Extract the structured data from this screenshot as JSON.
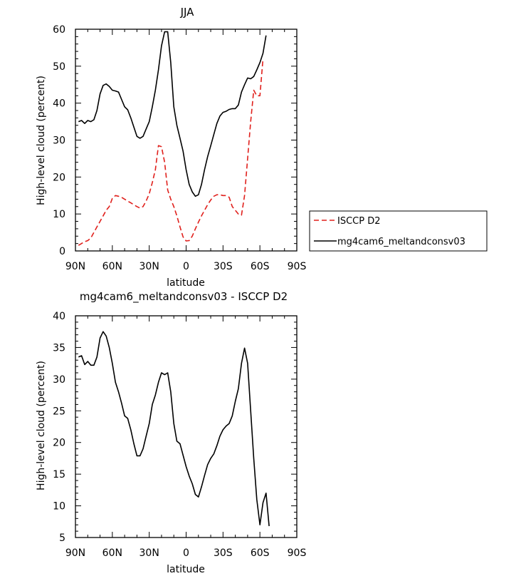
{
  "chart_data": [
    {
      "type": "line",
      "title": "JJA",
      "xlabel": "latitude",
      "ylabel": "High-level cloud (percent)",
      "xlim": [
        -90,
        90
      ],
      "ylim": [
        0,
        60
      ],
      "xticks": [
        {
          "value": -90,
          "label": "90N"
        },
        {
          "value": -60,
          "label": "60N"
        },
        {
          "value": -30,
          "label": "30N"
        },
        {
          "value": 0,
          "label": "0"
        },
        {
          "value": 30,
          "label": "30S"
        },
        {
          "value": 60,
          "label": "60S"
        },
        {
          "value": 90,
          "label": "90S"
        }
      ],
      "yticks": [
        0,
        10,
        20,
        30,
        40,
        50,
        60
      ],
      "legend": {
        "placement": "right"
      },
      "series": [
        {
          "name": "ISCCP D2",
          "color": "#e0201c",
          "dash": true,
          "points": [
            [
              -87.5,
              1.5
            ],
            [
              -85,
              2
            ],
            [
              -82.5,
              2.5
            ],
            [
              -80,
              2.8
            ],
            [
              -77.5,
              3.5
            ],
            [
              -75,
              5
            ],
            [
              -72.5,
              6.5
            ],
            [
              -70,
              8
            ],
            [
              -67.5,
              9.5
            ],
            [
              -65,
              11
            ],
            [
              -62.5,
              12
            ],
            [
              -60,
              14.2
            ],
            [
              -57.5,
              15
            ],
            [
              -55,
              14.8
            ],
            [
              -52.5,
              14.5
            ],
            [
              -50,
              14
            ],
            [
              -47.5,
              13.5
            ],
            [
              -45,
              13
            ],
            [
              -42.5,
              12.5
            ],
            [
              -40,
              12
            ],
            [
              -37.5,
              11.6
            ],
            [
              -35,
              12
            ],
            [
              -32.5,
              13.5
            ],
            [
              -30,
              15.5
            ],
            [
              -27.5,
              18.5
            ],
            [
              -25,
              22
            ],
            [
              -22.5,
              28.5
            ],
            [
              -20,
              28.2
            ],
            [
              -17.5,
              24
            ],
            [
              -15,
              16.5
            ],
            [
              -12.5,
              14
            ],
            [
              -10,
              12
            ],
            [
              -7.5,
              9.5
            ],
            [
              -5,
              6.5
            ],
            [
              -2.5,
              3.8
            ],
            [
              0,
              2.7
            ],
            [
              2.5,
              2.8
            ],
            [
              5,
              4
            ],
            [
              7.5,
              6
            ],
            [
              10,
              7.8
            ],
            [
              12.5,
              9.5
            ],
            [
              15,
              11
            ],
            [
              17.5,
              12.5
            ],
            [
              20,
              13.8
            ],
            [
              22.5,
              14.8
            ],
            [
              25,
              15.2
            ],
            [
              27.5,
              15.2
            ],
            [
              30,
              15
            ],
            [
              32.5,
              15
            ],
            [
              35,
              14.5
            ],
            [
              37.5,
              12
            ],
            [
              40,
              11
            ],
            [
              42.5,
              10
            ],
            [
              45,
              9.7
            ],
            [
              47.5,
              15
            ],
            [
              50,
              25
            ],
            [
              52.5,
              35
            ],
            [
              55,
              43.5
            ],
            [
              57.5,
              42
            ],
            [
              60,
              42
            ],
            [
              62.5,
              52
            ]
          ]
        },
        {
          "name": "mg4cam6_meltandconsv03",
          "color": "#000000",
          "dash": false,
          "points": [
            [
              -87.5,
              35
            ],
            [
              -85,
              35.3
            ],
            [
              -82.5,
              34.5
            ],
            [
              -80,
              35.3
            ],
            [
              -77.5,
              35
            ],
            [
              -75,
              35.5
            ],
            [
              -72.5,
              38
            ],
            [
              -70,
              42.5
            ],
            [
              -67.5,
              44.8
            ],
            [
              -65,
              45.2
            ],
            [
              -62.5,
              44.5
            ],
            [
              -60,
              43.5
            ],
            [
              -57.5,
              43.3
            ],
            [
              -55,
              43
            ],
            [
              -52.5,
              41
            ],
            [
              -50,
              39
            ],
            [
              -47.5,
              38.2
            ],
            [
              -45,
              36
            ],
            [
              -42.5,
              33.5
            ],
            [
              -40,
              31
            ],
            [
              -37.5,
              30.5
            ],
            [
              -35,
              31
            ],
            [
              -32.5,
              33
            ],
            [
              -30,
              35
            ],
            [
              -27.5,
              39
            ],
            [
              -25,
              43.5
            ],
            [
              -22.5,
              49
            ],
            [
              -20,
              55.5
            ],
            [
              -17.5,
              59.3
            ],
            [
              -15,
              59.3
            ],
            [
              -12.5,
              51
            ],
            [
              -10,
              39
            ],
            [
              -7.5,
              34
            ],
            [
              -5,
              30.5
            ],
            [
              -2.5,
              27
            ],
            [
              0,
              22
            ],
            [
              2.5,
              18
            ],
            [
              5,
              16
            ],
            [
              7.5,
              14.8
            ],
            [
              10,
              15.2
            ],
            [
              12.5,
              18
            ],
            [
              15,
              22
            ],
            [
              17.5,
              25.5
            ],
            [
              20,
              28.5
            ],
            [
              22.5,
              31.5
            ],
            [
              25,
              34.5
            ],
            [
              27.5,
              36.5
            ],
            [
              30,
              37.5
            ],
            [
              32.5,
              37.8
            ],
            [
              35,
              38.3
            ],
            [
              37.5,
              38.5
            ],
            [
              40,
              38.5
            ],
            [
              42.5,
              39.5
            ],
            [
              45,
              43
            ],
            [
              47.5,
              45
            ],
            [
              50,
              46.8
            ],
            [
              52.5,
              46.6
            ],
            [
              55,
              47.2
            ],
            [
              57.5,
              49
            ],
            [
              60,
              51
            ],
            [
              62.5,
              53.5
            ],
            [
              65,
              58.3
            ]
          ]
        }
      ]
    },
    {
      "type": "line",
      "title": "mg4cam6_meltandconsv03 - ISCCP D2",
      "xlabel": "latitude",
      "ylabel": "High-level cloud (percent)",
      "xlim": [
        -90,
        90
      ],
      "ylim": [
        5,
        40
      ],
      "xticks": [
        {
          "value": -90,
          "label": "90N"
        },
        {
          "value": -60,
          "label": "60N"
        },
        {
          "value": -30,
          "label": "30N"
        },
        {
          "value": 0,
          "label": "0"
        },
        {
          "value": 30,
          "label": "30S"
        },
        {
          "value": 60,
          "label": "60S"
        },
        {
          "value": 90,
          "label": "90S"
        }
      ],
      "yticks": [
        5,
        10,
        15,
        20,
        25,
        30,
        35,
        40
      ],
      "series": [
        {
          "color": "#000000",
          "dash": false,
          "points": [
            [
              -87.5,
              33.5
            ],
            [
              -85,
              33.7
            ],
            [
              -82.5,
              32.3
            ],
            [
              -80,
              32.8
            ],
            [
              -77.5,
              32.2
            ],
            [
              -75,
              32.2
            ],
            [
              -72.5,
              33.5
            ],
            [
              -70,
              36.5
            ],
            [
              -67.5,
              37.5
            ],
            [
              -65,
              36.8
            ],
            [
              -62.5,
              35
            ],
            [
              -60,
              32.5
            ],
            [
              -57.5,
              29.5
            ],
            [
              -55,
              28
            ],
            [
              -52.5,
              26.2
            ],
            [
              -50,
              24.2
            ],
            [
              -47.5,
              23.8
            ],
            [
              -45,
              22
            ],
            [
              -42.5,
              19.8
            ],
            [
              -40,
              17.9
            ],
            [
              -37.5,
              17.9
            ],
            [
              -35,
              19
            ],
            [
              -32.5,
              21
            ],
            [
              -30,
              23
            ],
            [
              -27.5,
              26
            ],
            [
              -25,
              27.5
            ],
            [
              -22.5,
              29.5
            ],
            [
              -20,
              31
            ],
            [
              -17.5,
              30.7
            ],
            [
              -15,
              31
            ],
            [
              -12.5,
              28
            ],
            [
              -10,
              23
            ],
            [
              -7.5,
              20.2
            ],
            [
              -5,
              19.8
            ],
            [
              -2.5,
              18
            ],
            [
              0,
              16.2
            ],
            [
              2.5,
              14.7
            ],
            [
              5,
              13.5
            ],
            [
              7.5,
              11.8
            ],
            [
              10,
              11.4
            ],
            [
              12.5,
              13
            ],
            [
              15,
              14.8
            ],
            [
              17.5,
              16.5
            ],
            [
              20,
              17.5
            ],
            [
              22.5,
              18.2
            ],
            [
              25,
              19.5
            ],
            [
              27.5,
              21
            ],
            [
              30,
              22
            ],
            [
              32.5,
              22.6
            ],
            [
              35,
              23
            ],
            [
              37.5,
              24.2
            ],
            [
              40,
              26.5
            ],
            [
              42.5,
              28.5
            ],
            [
              45,
              32.5
            ],
            [
              47.5,
              34.9
            ],
            [
              50,
              32.5
            ],
            [
              52.5,
              25
            ],
            [
              55,
              17.5
            ],
            [
              57.5,
              11
            ],
            [
              60,
              7
            ],
            [
              62.5,
              10.5
            ],
            [
              65,
              12
            ],
            [
              67.5,
              6.8
            ]
          ]
        }
      ]
    }
  ]
}
